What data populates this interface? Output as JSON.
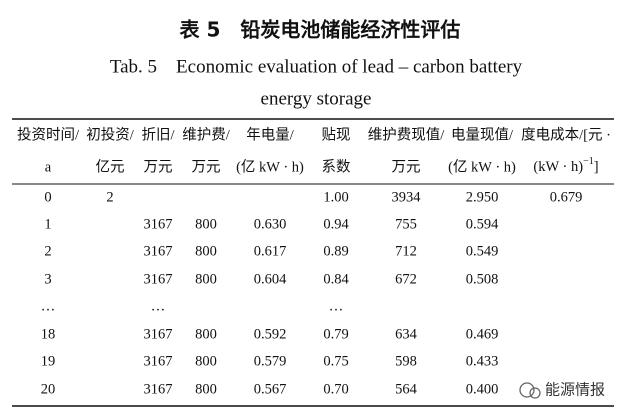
{
  "caption": {
    "cn": "表 5　铅炭电池储能经济性评估",
    "en_line1": "Tab. 5　Economic evaluation of lead – carbon battery",
    "en_line2": "energy storage"
  },
  "table": {
    "header": [
      {
        "line1": "投资时间/",
        "line2": "a"
      },
      {
        "line1": "初投资/",
        "line2": "亿元"
      },
      {
        "line1": "折旧/",
        "line2": "万元"
      },
      {
        "line1": "维护费/",
        "line2": "万元"
      },
      {
        "line1": "年电量/",
        "line2": "(亿 kW · h)"
      },
      {
        "line1": "贴现",
        "line2": "系数"
      },
      {
        "line1": "维护费现值/",
        "line2": "万元"
      },
      {
        "line1": "电量现值/",
        "line2": "(亿 kW · h)"
      },
      {
        "line1": "度电成本/[元 ·",
        "line2": "(kW · h)",
        "line2_sup": "−1",
        "line2_tail": "]"
      }
    ],
    "rows": [
      [
        "0",
        "2",
        null,
        null,
        null,
        "1.00",
        "3934",
        "2.950",
        "0.679"
      ],
      [
        "1",
        null,
        "3167",
        "800",
        "0.630",
        "0.94",
        "755",
        "0.594",
        null
      ],
      [
        "2",
        null,
        "3167",
        "800",
        "0.617",
        "0.89",
        "712",
        "0.549",
        null
      ],
      [
        "3",
        null,
        "3167",
        "800",
        "0.604",
        "0.84",
        "672",
        "0.508",
        null
      ],
      [
        "…",
        null,
        "…",
        null,
        null,
        "…",
        null,
        null,
        null
      ],
      [
        "18",
        null,
        "3167",
        "800",
        "0.592",
        "0.79",
        "634",
        "0.469",
        null
      ],
      [
        "19",
        null,
        "3167",
        "800",
        "0.579",
        "0.75",
        "598",
        "0.433",
        null
      ],
      [
        "20",
        null,
        "3167",
        "800",
        "0.567",
        "0.70",
        "564",
        "0.400",
        null
      ]
    ]
  },
  "watermark": "能源情报"
}
